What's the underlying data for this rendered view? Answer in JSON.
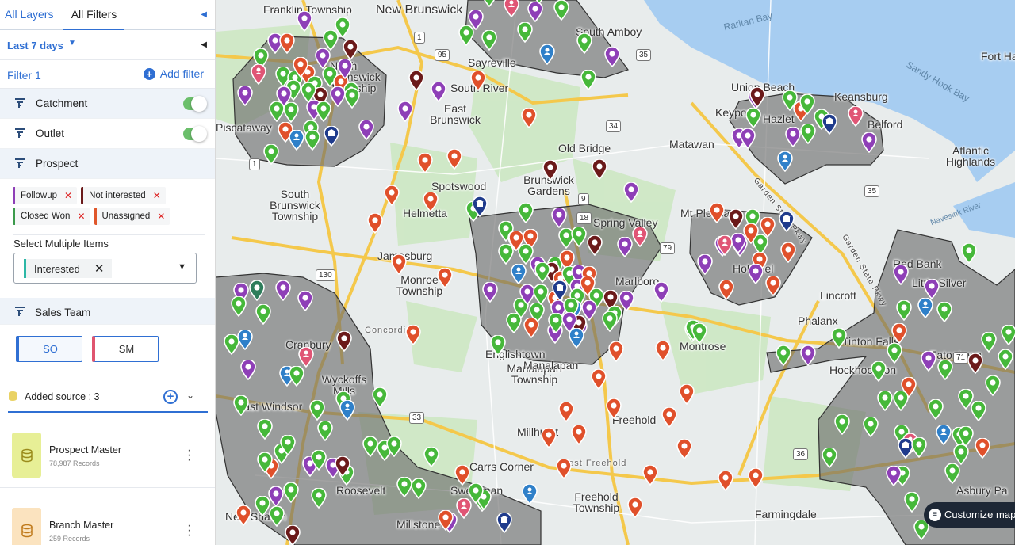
{
  "tabs": {
    "all_layers": "All Layers",
    "all_filters": "All Filters"
  },
  "date_range": {
    "label": "Last 7 days"
  },
  "filter": {
    "name": "Filter 1",
    "add_label": "Add filter"
  },
  "layers": [
    {
      "label": "Catchment",
      "toggle_on": true
    },
    {
      "label": "Outlet",
      "toggle_on": true
    },
    {
      "label": "Prospect"
    }
  ],
  "prospect_chips": [
    {
      "label": "Followup",
      "color": "#8e3fb7"
    },
    {
      "label": "Not interested",
      "color": "#6b1a1a"
    },
    {
      "label": "Closed Won",
      "color": "#3b9a4b"
    },
    {
      "label": "Unassigned",
      "color": "#e0572b"
    }
  ],
  "select_multiple": {
    "label": "Select Multiple Items",
    "selected": "Interested",
    "color": "#2cb7a6"
  },
  "sales_team": {
    "label": "Sales Team",
    "buttons": [
      "SO",
      "SM"
    ]
  },
  "sources": {
    "label": "Added source : 3",
    "items": [
      {
        "name": "Prospect Master",
        "records": "78,987 Records",
        "color": "#e7ef96"
      },
      {
        "name": "Branch Master",
        "records": "259 Records",
        "color": "#fbe3bf"
      }
    ]
  },
  "map": {
    "customize_label": "Customize map",
    "places": [
      "Franklin Township",
      "New Brunswick",
      "North Brunswick Township",
      "Raritan Bay",
      "South Amboy",
      "Keyport",
      "Union Beach",
      "Keansburg",
      "Fort Han",
      "Sandy Hook Bay",
      "Sayreville",
      "South River",
      "East Brunswick",
      "Piscataway",
      "Hazlet",
      "Belford",
      "Atlantic Highlands",
      "Matawan",
      "Old Bridge",
      "Brunswick Gardens",
      "Spotswood",
      "South Brunswick Township",
      "Helmetta",
      "Jamesburg",
      "Monroe Township",
      "Spring Valley",
      "Mt Pleasant",
      "Holmdel",
      "Marlboro",
      "Englishtown",
      "Manalapan Township",
      "Montrose",
      "Red Bank",
      "Little Silver",
      "Lincroft",
      "Phalanx",
      "Tinton Falls",
      "Eatontown",
      "Hockhockson",
      "Cranbury",
      "Wyckoffs Mills",
      "East Windsor",
      "Concordia",
      "Millhurst",
      "Freehold",
      "West Freehold",
      "Freehold Township",
      "Carrs Corner",
      "Sweetman",
      "Roosevelt",
      "Millstone",
      "New Sharon",
      "Farmingdale",
      "Asbury Pa",
      "Garden State Pkwy",
      "Navesink River",
      "Manalapan"
    ],
    "shields": [
      "1",
      "95",
      "35",
      "34",
      "18",
      "9",
      "79",
      "130",
      "33",
      "71",
      "36",
      "35",
      "1"
    ]
  }
}
